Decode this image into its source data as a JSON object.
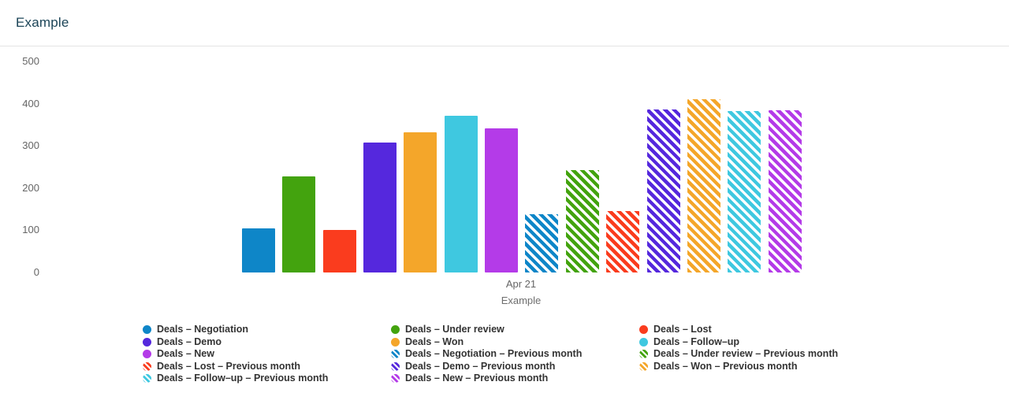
{
  "header": {
    "title": "Example"
  },
  "colors": {
    "title_text": "#1b4457",
    "axis_text": "#666666",
    "legend_text": "#333333",
    "divider": "#e4e4e4",
    "background": "#ffffff"
  },
  "chart_data": {
    "type": "bar",
    "title": "",
    "categories": [
      "Apr 21"
    ],
    "xlabel": "Example",
    "ylabel": "",
    "ylim": [
      0,
      500
    ],
    "yticks": [
      0,
      100,
      200,
      300,
      400,
      500
    ],
    "grid": false,
    "legend_position": "bottom",
    "series": [
      {
        "name": "Deals – Negotiation",
        "values": [
          105
        ],
        "color": "#0e86c8",
        "pattern": "solid"
      },
      {
        "name": "Deals – Under review",
        "values": [
          228
        ],
        "color": "#43a30e",
        "pattern": "solid"
      },
      {
        "name": "Deals – Lost",
        "values": [
          100
        ],
        "color": "#fa3c1e",
        "pattern": "solid"
      },
      {
        "name": "Deals – Demo",
        "values": [
          307
        ],
        "color": "#5528dd",
        "pattern": "solid"
      },
      {
        "name": "Deals – Won",
        "values": [
          333
        ],
        "color": "#f4a62a",
        "pattern": "solid"
      },
      {
        "name": "Deals – Follow–up",
        "values": [
          372
        ],
        "color": "#3fc8e0",
        "pattern": "solid"
      },
      {
        "name": "Deals – New",
        "values": [
          342
        ],
        "color": "#b43be8",
        "pattern": "solid"
      },
      {
        "name": "Deals – Negotiation – Previous month",
        "values": [
          138
        ],
        "color": "#0e86c8",
        "pattern": "striped"
      },
      {
        "name": "Deals – Under review – Previous month",
        "values": [
          242
        ],
        "color": "#43a30e",
        "pattern": "striped"
      },
      {
        "name": "Deals – Lost – Previous month",
        "values": [
          145
        ],
        "color": "#fa3c1e",
        "pattern": "striped"
      },
      {
        "name": "Deals – Demo – Previous month",
        "values": [
          386
        ],
        "color": "#5528dd",
        "pattern": "striped"
      },
      {
        "name": "Deals – Won – Previous month",
        "values": [
          410
        ],
        "color": "#f4a62a",
        "pattern": "striped"
      },
      {
        "name": "Deals – Follow–up – Previous month",
        "values": [
          382
        ],
        "color": "#3fc8e0",
        "pattern": "striped"
      },
      {
        "name": "Deals – New – Previous month",
        "values": [
          385
        ],
        "color": "#b43be8",
        "pattern": "striped"
      }
    ]
  }
}
